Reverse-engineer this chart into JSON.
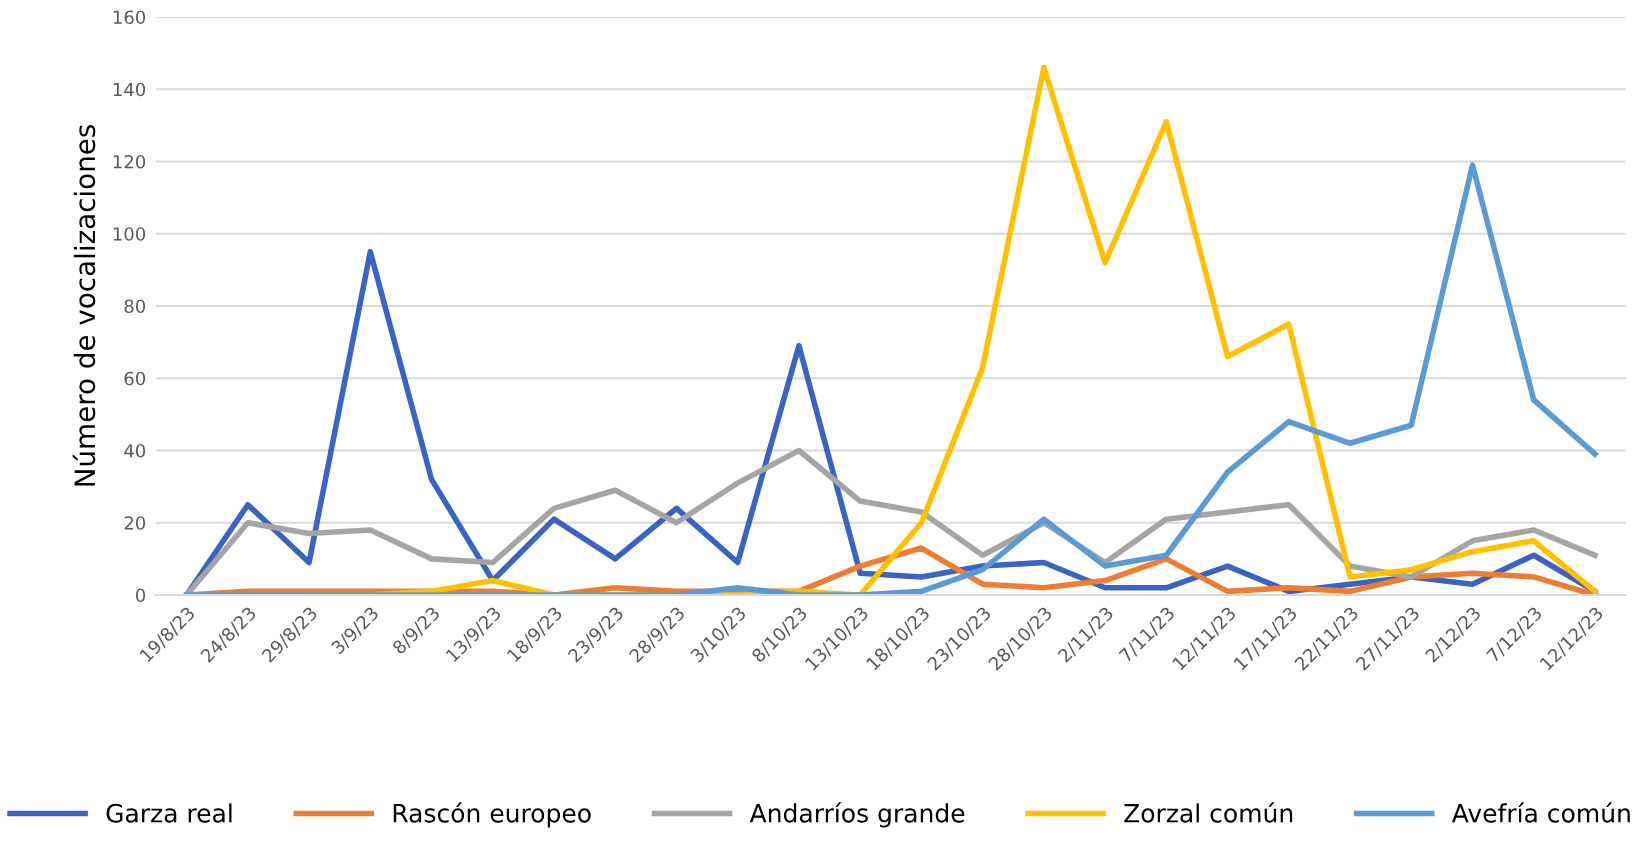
{
  "chart_data": {
    "type": "line",
    "ylabel": "Número de vocalizaciones",
    "categories": [
      "19/8/23",
      "24/8/23",
      "29/8/23",
      "3/9/23",
      "8/9/23",
      "13/9/23",
      "18/9/23",
      "23/9/23",
      "28/9/23",
      "3/10/23",
      "8/10/23",
      "13/10/23",
      "18/10/23",
      "23/10/23",
      "28/10/23",
      "2/11/23",
      "7/11/23",
      "12/11/23",
      "17/11/23",
      "22/11/23",
      "27/11/23",
      "2/12/23",
      "7/12/23",
      "12/12/23"
    ],
    "series": [
      {
        "name": "Garza real",
        "color": "#3a63c4",
        "values": [
          0,
          25,
          9,
          95,
          32,
          4,
          21,
          10,
          24,
          9,
          69,
          6,
          5,
          8,
          9,
          2,
          2,
          8,
          1,
          3,
          5,
          3,
          11,
          1
        ]
      },
      {
        "name": "Rascón europeo",
        "color": "#ee7d31",
        "values": [
          0,
          1,
          1,
          1,
          1,
          1,
          0,
          2,
          1,
          1,
          1,
          8,
          13,
          3,
          2,
          4,
          10,
          1,
          2,
          1,
          5,
          6,
          5,
          0
        ]
      },
      {
        "name": "Andarríos grande",
        "color": "#a5a5a5",
        "values": [
          0,
          20,
          17,
          18,
          10,
          9,
          24,
          29,
          20,
          31,
          40,
          26,
          23,
          11,
          20,
          9,
          21,
          23,
          25,
          8,
          5,
          15,
          18,
          11
        ]
      },
      {
        "name": "Zorzal común",
        "color": "#ffc000",
        "values": [
          null,
          null,
          0,
          0,
          1,
          4,
          0,
          0,
          0,
          0,
          1,
          0,
          20,
          63,
          146,
          92,
          131,
          66,
          75,
          5,
          7,
          12,
          15,
          1
        ]
      },
      {
        "name": "Avefría común",
        "color": "#5b9bd5",
        "values": [
          0,
          0,
          0,
          0,
          0,
          0,
          0,
          0,
          0,
          2,
          0,
          0,
          1,
          7,
          21,
          8,
          11,
          34,
          48,
          42,
          47,
          119,
          54,
          39
        ]
      }
    ],
    "ylim": [
      0,
      160
    ],
    "yticks": [
      0,
      20,
      40,
      60,
      80,
      100,
      120,
      140,
      160
    ],
    "grid": "y",
    "legend": "bottom",
    "marker": "none",
    "line_style": "solid"
  }
}
